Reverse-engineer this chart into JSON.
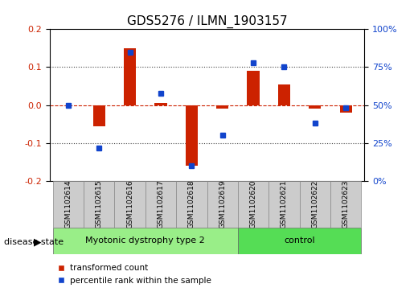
{
  "title": "GDS5276 / ILMN_1903157",
  "samples": [
    "GSM1102614",
    "GSM1102615",
    "GSM1102616",
    "GSM1102617",
    "GSM1102618",
    "GSM1102619",
    "GSM1102620",
    "GSM1102621",
    "GSM1102622",
    "GSM1102623"
  ],
  "red_values": [
    0.0,
    -0.055,
    0.15,
    0.005,
    -0.16,
    -0.01,
    0.09,
    0.055,
    -0.01,
    -0.02
  ],
  "blue_values": [
    50,
    22,
    85,
    58,
    10,
    30,
    78,
    75,
    38,
    48
  ],
  "group1_label": "Myotonic dystrophy type 2",
  "group1_samples": 6,
  "group2_label": "control",
  "group2_samples": 4,
  "disease_state_label": "disease state",
  "red_legend": "transformed count",
  "blue_legend": "percentile rank within the sample",
  "ylim_left": [
    -0.2,
    0.2
  ],
  "ylim_right": [
    0,
    100
  ],
  "yticks_left": [
    -0.2,
    -0.1,
    0.0,
    0.1,
    0.2
  ],
  "yticks_right": [
    0,
    25,
    50,
    75,
    100
  ],
  "red_color": "#cc2200",
  "blue_color": "#1144cc",
  "group1_color": "#99ee88",
  "group2_color": "#55dd55",
  "gray_color": "#cccccc",
  "hline_color": "#cc2200",
  "dotted_color": "#444444",
  "bar_width": 0.4
}
